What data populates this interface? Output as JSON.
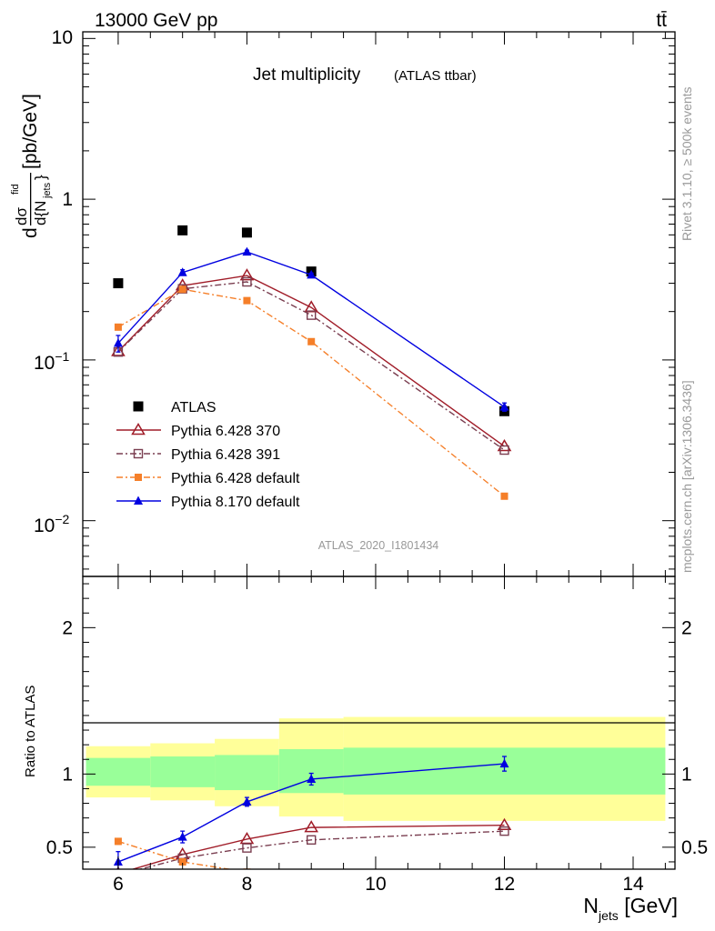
{
  "header": {
    "energy": "13000 GeV pp",
    "process": "tt̄"
  },
  "title": {
    "main": "Jet multiplicity",
    "sub": "(ATLAS ttbar)"
  },
  "side": {
    "rivet": "Rivet 3.1.10, ≥ 500k events",
    "site": "mcplots.cern.ch [arXiv:1306.3436]"
  },
  "analysis_id": "ATLAS_2020_I1801434",
  "main_ylabel": {
    "d": "d",
    "dsig": "dσ",
    "fid": "fid",
    "den": "d{N",
    "den_sub": "jets",
    "den_close": "}",
    "unit": "[pb/GeV]"
  },
  "ratio_ylabel": "Ratio to ATLAS",
  "xlabel": {
    "main": "N",
    "sub": "jets",
    "unit": "[GeV]"
  },
  "main_yticks": {
    "t10": "10",
    "t1": "1",
    "tm1_base": "10",
    "tm1_exp": "−1",
    "tm2_base": "10",
    "tm2_exp": "−2"
  },
  "colors": {
    "atlas": "#000000",
    "p6_370": "#a01c28",
    "p6_391": "#7a3e50",
    "p6_default": "#f57f29",
    "p8_default": "#0000e0",
    "band_inner": "#99ff99",
    "band_outer": "#ffff99"
  },
  "chart_data": [
    {
      "type": "scatter",
      "title": "Jet multiplicity (ATLAS ttbar)",
      "xlabel": "N_jets [GeV]",
      "ylabel": "dσ^fid / d{N_jets} [pb/GeV]",
      "xlim": [
        5.45,
        14.65
      ],
      "ylim": [
        0.0045,
        11
      ],
      "yscale": "log",
      "x_ticks": [
        6,
        8,
        10,
        12,
        14
      ],
      "legend_position": "lower-left",
      "series": [
        {
          "name": "ATLAS",
          "marker": "filled-square",
          "x": [
            6,
            7,
            8,
            9,
            12
          ],
          "y": [
            0.3,
            0.64,
            0.62,
            0.355,
            0.048
          ]
        },
        {
          "name": "Pythia 6.428 370",
          "marker": "open-triangle",
          "line": "solid",
          "x": [
            6,
            7,
            8,
            9,
            12
          ],
          "y": [
            0.113,
            0.29,
            0.335,
            0.212,
            0.029
          ]
        },
        {
          "name": "Pythia 6.428 391",
          "marker": "open-square",
          "line": "dash-dot",
          "x": [
            6,
            7,
            8,
            9,
            12
          ],
          "y": [
            0.112,
            0.277,
            0.306,
            0.19,
            0.0275
          ]
        },
        {
          "name": "Pythia 6.428 default",
          "marker": "small-filled-square",
          "line": "dash-dot",
          "x": [
            6,
            7,
            8,
            9,
            12
          ],
          "y": [
            0.16,
            0.275,
            0.234,
            0.13,
            0.0142
          ],
          "yerr": [
            0.006,
            0.006,
            0.005,
            0.003,
            0.0004
          ]
        },
        {
          "name": "Pythia 8.170 default",
          "marker": "filled-triangle",
          "line": "solid",
          "x": [
            6,
            7,
            8,
            9,
            12
          ],
          "y": [
            0.127,
            0.35,
            0.47,
            0.338,
            0.051
          ],
          "yerr": [
            0.015,
            0.014,
            0.012,
            0.009,
            0.003
          ]
        }
      ]
    },
    {
      "type": "line",
      "ylabel": "Ratio to ATLAS",
      "xlim": [
        5.45,
        14.65
      ],
      "ylim": [
        0.35,
        2.35
      ],
      "y_ticks": [
        0.5,
        1,
        2
      ],
      "reference_line": 1,
      "bands": {
        "edges": [
          5.5,
          6.5,
          7.5,
          8.5,
          9.5,
          14.5
        ],
        "inner_low": [
          0.92,
          0.91,
          0.89,
          0.87,
          0.86
        ],
        "inner_high": [
          1.11,
          1.12,
          1.13,
          1.17,
          1.18
        ],
        "outer_low": [
          0.84,
          0.82,
          0.78,
          0.71,
          0.68
        ],
        "outer_high": [
          1.19,
          1.21,
          1.24,
          1.38,
          1.39
        ]
      },
      "series": [
        {
          "name": "Pythia 6.428 370",
          "x": [
            6,
            7,
            8,
            9,
            12
          ],
          "y": [
            0.32,
            0.45,
            0.555,
            0.635,
            0.65
          ]
        },
        {
          "name": "Pythia 6.428 391",
          "x": [
            6,
            7,
            8,
            9,
            12
          ],
          "y": [
            0.31,
            0.425,
            0.495,
            0.55,
            0.61
          ]
        },
        {
          "name": "Pythia 6.428 default",
          "x": [
            6,
            7,
            8,
            9,
            12
          ],
          "y": [
            0.54,
            0.4,
            0.33,
            0.3,
            0.29
          ],
          "yerr": [
            0.02,
            0.01,
            0.01,
            0.01,
            0.01
          ]
        },
        {
          "name": "Pythia 8.170 default",
          "x": [
            6,
            7,
            8,
            9,
            12
          ],
          "y": [
            0.4,
            0.57,
            0.81,
            0.965,
            1.07
          ],
          "yerr": [
            0.07,
            0.04,
            0.03,
            0.04,
            0.05
          ]
        }
      ]
    }
  ]
}
